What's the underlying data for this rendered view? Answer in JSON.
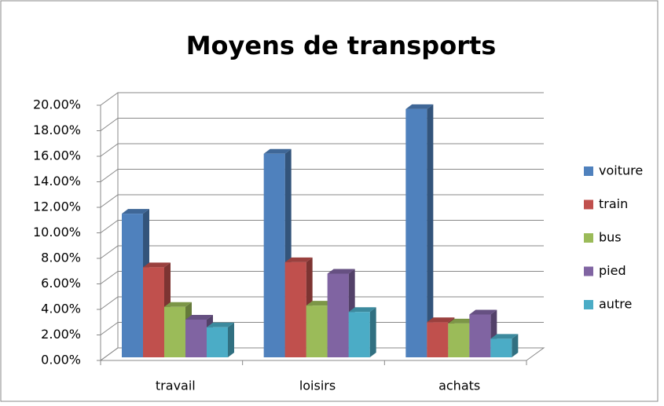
{
  "chart_data": {
    "type": "bar3d",
    "title": "Moyens de transports",
    "categories": [
      "travail",
      "loisirs",
      "achats"
    ],
    "series": [
      {
        "name": "voiture",
        "color": "#4f81bd",
        "values": [
          11.5,
          16.2,
          19.7
        ]
      },
      {
        "name": "train",
        "color": "#c0504d",
        "values": [
          7.3,
          7.7,
          3.0
        ]
      },
      {
        "name": "bus",
        "color": "#9bbb59",
        "values": [
          4.2,
          4.3,
          2.9
        ]
      },
      {
        "name": "pied",
        "color": "#8064a2",
        "values": [
          3.2,
          6.8,
          3.6
        ]
      },
      {
        "name": "autre",
        "color": "#4bacc6",
        "values": [
          2.6,
          3.8,
          1.7
        ]
      }
    ],
    "ylim": [
      0,
      20
    ],
    "yticks": [
      {
        "value": 0,
        "label": "0.00%"
      },
      {
        "value": 2,
        "label": "2.00%"
      },
      {
        "value": 4,
        "label": "4.00%"
      },
      {
        "value": 6,
        "label": "6.00%"
      },
      {
        "value": 8,
        "label": "8.00%"
      },
      {
        "value": 10,
        "label": "10.00%"
      },
      {
        "value": 12,
        "label": "12.00%"
      },
      {
        "value": 14,
        "label": "14.00%"
      },
      {
        "value": 16,
        "label": "16.00%"
      },
      {
        "value": 18,
        "label": "18.00%"
      },
      {
        "value": 20,
        "label": "20.00%"
      }
    ],
    "grid": true,
    "legend": "right"
  }
}
